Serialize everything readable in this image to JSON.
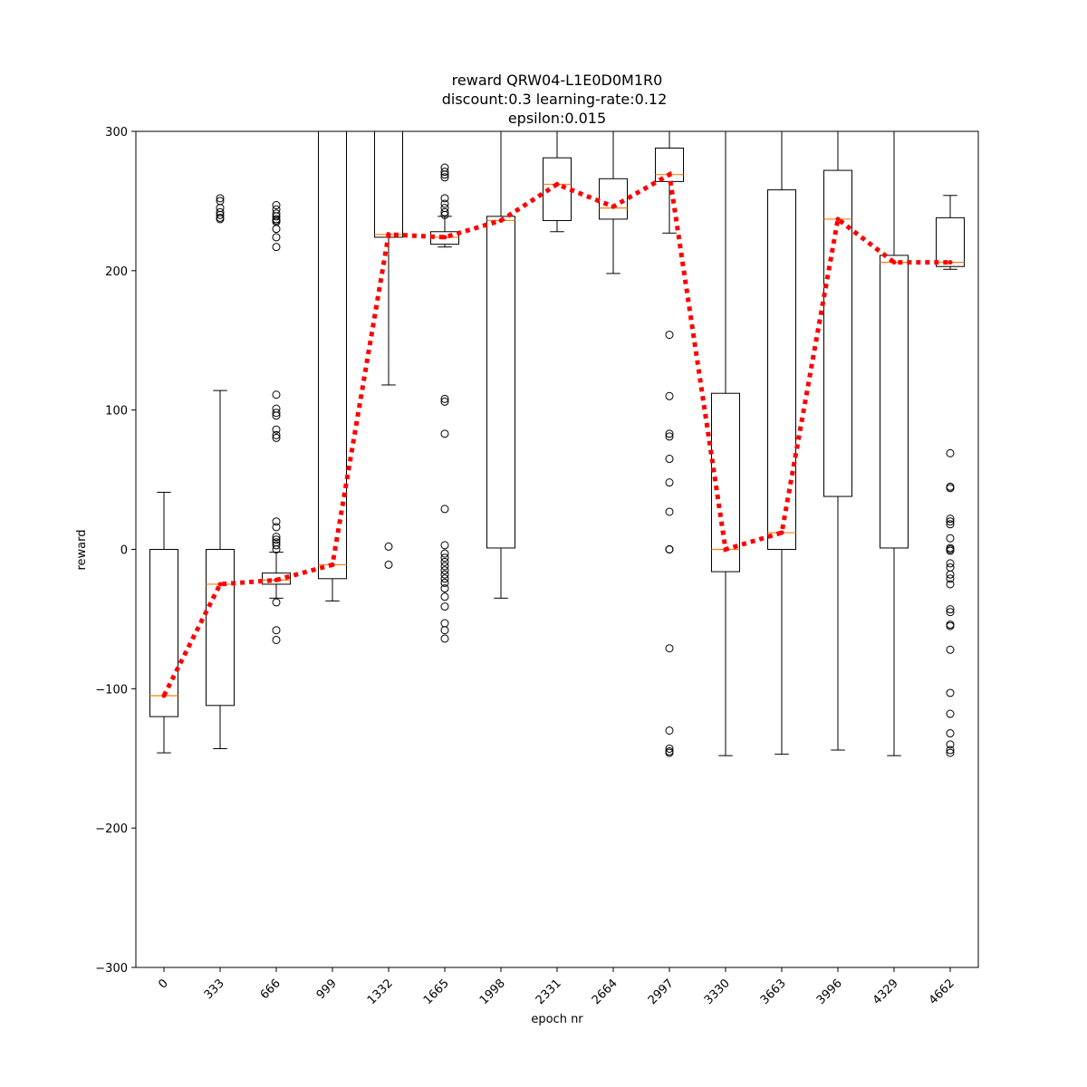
{
  "chart_data": {
    "type": "box",
    "title_lines": [
      "reward QRW04-L1E0D0M1R0",
      "discount:0.3 learning-rate:0.12",
      "epsilon:0.015"
    ],
    "xlabel": "epoch nr",
    "ylabel": "reward",
    "ylim": [
      -300,
      300
    ],
    "yticks": [
      -300,
      -200,
      -100,
      0,
      100,
      200,
      300
    ],
    "categories": [
      "0",
      "333",
      "666",
      "999",
      "1332",
      "1665",
      "1998",
      "2331",
      "2664",
      "2997",
      "3330",
      "3663",
      "3996",
      "4329",
      "4662"
    ],
    "box_color": "#000000",
    "median_color": "#ff7f0e",
    "mean_line_color": "#ff0000",
    "boxes": [
      {
        "q1": -120,
        "median": -105,
        "q3": 0,
        "whisker_low": -146,
        "whisker_high": 41,
        "mean": -105,
        "outliers": []
      },
      {
        "q1": -112,
        "median": -25,
        "q3": 0,
        "whisker_low": -143,
        "whisker_high": 114,
        "mean": -25,
        "outliers": [
          252,
          250,
          245,
          242,
          240,
          238,
          237
        ]
      },
      {
        "q1": -25,
        "median": -22,
        "q3": -17,
        "whisker_low": -35,
        "whisker_high": -2,
        "mean": -22,
        "outliers": [
          247,
          244,
          241,
          239,
          237,
          236,
          235,
          230,
          224,
          217,
          111,
          101,
          98,
          96,
          86,
          82,
          80,
          20,
          16,
          9,
          7,
          5,
          3,
          0,
          -38,
          -58,
          -65
        ]
      },
      {
        "q1": -21,
        "median": -11,
        "q3": 300,
        "whisker_low": -37,
        "whisker_high": 300,
        "mean": -11,
        "outliers": []
      },
      {
        "q1": 224,
        "median": 226,
        "q3": 300,
        "whisker_low": 118,
        "whisker_high": 300,
        "mean": 226,
        "outliers": [
          2,
          -11
        ]
      },
      {
        "q1": 219,
        "median": 224,
        "q3": 228,
        "whisker_low": 217,
        "whisker_high": 239,
        "mean": 224,
        "outliers": [
          274,
          271,
          269,
          267,
          252,
          248,
          245,
          242,
          240,
          108,
          106,
          83,
          29,
          3,
          -3,
          -6,
          -9,
          -12,
          -15,
          -18,
          -21,
          -24,
          -28,
          -34,
          -41,
          -53,
          -58,
          -64
        ]
      },
      {
        "q1": 1,
        "median": 236,
        "q3": 239,
        "whisker_low": -35,
        "whisker_high": 300,
        "mean": 236,
        "outliers": []
      },
      {
        "q1": 236,
        "median": 262,
        "q3": 281,
        "whisker_low": 228,
        "whisker_high": 300,
        "mean": 262,
        "outliers": []
      },
      {
        "q1": 237,
        "median": 245,
        "q3": 266,
        "whisker_low": 198,
        "whisker_high": 300,
        "mean": 246,
        "outliers": []
      },
      {
        "q1": 264,
        "median": 269,
        "q3": 288,
        "whisker_low": 227,
        "whisker_high": 300,
        "mean": 269,
        "outliers": [
          154,
          110,
          83,
          81,
          65,
          48,
          27,
          0,
          0,
          0,
          -71,
          -130,
          -143,
          -145,
          -146
        ]
      },
      {
        "q1": -16,
        "median": 0,
        "q3": 112,
        "whisker_low": -148,
        "whisker_high": 300,
        "mean": 0,
        "outliers": []
      },
      {
        "q1": 0,
        "median": 12,
        "q3": 258,
        "whisker_low": -147,
        "whisker_high": 300,
        "mean": 12,
        "outliers": []
      },
      {
        "q1": 38,
        "median": 237,
        "q3": 272,
        "whisker_low": -144,
        "whisker_high": 300,
        "mean": 237,
        "outliers": []
      },
      {
        "q1": 1,
        "median": 206,
        "q3": 211,
        "whisker_low": -148,
        "whisker_high": 300,
        "mean": 206,
        "outliers": []
      },
      {
        "q1": 203,
        "median": 206,
        "q3": 238,
        "whisker_low": 201,
        "whisker_high": 254,
        "mean": 206,
        "outliers": [
          69,
          45,
          44,
          22,
          20,
          18,
          8,
          1,
          0,
          -1,
          -10,
          -13,
          -18,
          -21,
          -25,
          -43,
          -45,
          -54,
          -55,
          -72,
          -103,
          -118,
          -132,
          -140,
          -144,
          -146
        ]
      }
    ]
  }
}
